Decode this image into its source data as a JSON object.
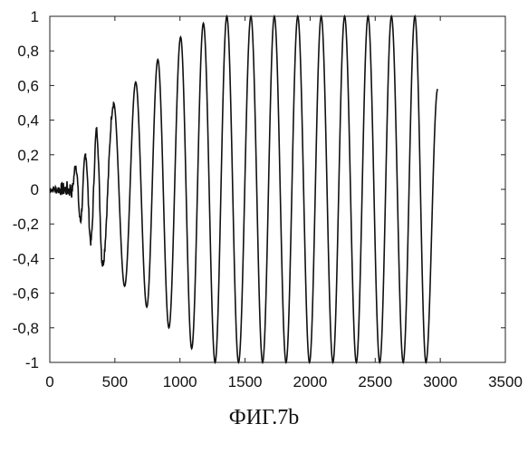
{
  "chart_data": {
    "type": "line",
    "title": "",
    "xlabel": "",
    "ylabel": "",
    "xlim": [
      0,
      3500
    ],
    "ylim": [
      -1,
      1
    ],
    "x_ticks": [
      0,
      500,
      1000,
      1500,
      2000,
      2500,
      3000,
      3500
    ],
    "y_ticks": [
      1,
      0.8,
      0.6,
      0.4,
      0.2,
      0,
      -0.2,
      -0.4,
      -0.6,
      -0.8,
      -1
    ],
    "x_tick_labels": [
      "0",
      "500",
      "1000",
      "1500",
      "2000",
      "2500",
      "3000",
      "3500"
    ],
    "y_tick_labels": [
      "1",
      "0,8",
      "0,6",
      "0,4",
      "0,2",
      "0",
      "-0,2",
      "-0,4",
      "-0,6",
      "-0,8",
      "-1"
    ],
    "grid": false,
    "line_color": "#111111",
    "series": [
      {
        "x_start": 0,
        "x_end": 2980,
        "peaks": [
          {
            "x": 200,
            "y": 0.14
          },
          {
            "x": 235,
            "y": -0.18
          },
          {
            "x": 275,
            "y": 0.2
          },
          {
            "x": 315,
            "y": -0.3
          },
          {
            "x": 360,
            "y": 0.34
          },
          {
            "x": 405,
            "y": -0.43
          },
          {
            "x": 490,
            "y": 0.5
          },
          {
            "x": 575,
            "y": -0.56
          },
          {
            "x": 660,
            "y": 0.62
          },
          {
            "x": 745,
            "y": -0.68
          },
          {
            "x": 830,
            "y": 0.75
          },
          {
            "x": 915,
            "y": -0.8
          },
          {
            "x": 1005,
            "y": 0.88
          },
          {
            "x": 1090,
            "y": -0.92
          },
          {
            "x": 1180,
            "y": 0.96
          },
          {
            "x": 1270,
            "y": -1.0
          },
          {
            "x": 1360,
            "y": 1.0
          },
          {
            "x": 1450,
            "y": -1.0
          },
          {
            "x": 1545,
            "y": 1.0
          },
          {
            "x": 1635,
            "y": -1.0
          },
          {
            "x": 1725,
            "y": 1.0
          },
          {
            "x": 1815,
            "y": -1.0
          },
          {
            "x": 1905,
            "y": 1.0
          },
          {
            "x": 1995,
            "y": -1.0
          },
          {
            "x": 2085,
            "y": 1.0
          },
          {
            "x": 2175,
            "y": -1.0
          },
          {
            "x": 2265,
            "y": 1.0
          },
          {
            "x": 2355,
            "y": -1.0
          },
          {
            "x": 2445,
            "y": 1.0
          },
          {
            "x": 2535,
            "y": -1.0
          },
          {
            "x": 2625,
            "y": 1.0
          },
          {
            "x": 2715,
            "y": -1.0
          },
          {
            "x": 2805,
            "y": 1.0
          },
          {
            "x": 2890,
            "y": -1.0
          },
          {
            "x": 2980,
            "y": 0.58
          }
        ]
      }
    ]
  },
  "caption": "ФИГ.7b"
}
